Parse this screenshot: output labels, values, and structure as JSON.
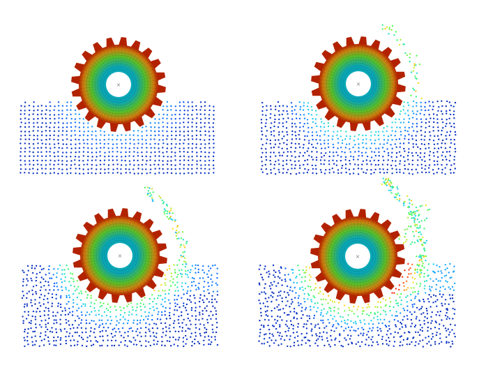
{
  "figure": {
    "background": "#ffffff",
    "panels": [
      {
        "id": "a",
        "stage": 0.0
      },
      {
        "id": "b",
        "stage": 0.33
      },
      {
        "id": "c",
        "stage": 0.66
      },
      {
        "id": "d",
        "stage": 1.0
      }
    ],
    "gear": {
      "teeth": 20,
      "rim_color": "#b22200",
      "mid_color": "#58c028",
      "inner_color": "#0aa8b8",
      "hub_color": "#ffffff",
      "center_mark_color": "#888888"
    },
    "particle_colormap": [
      "#0a1aa0",
      "#1060ff",
      "#20d0ff",
      "#40ff60",
      "#ffe020",
      "#ff3010"
    ]
  }
}
